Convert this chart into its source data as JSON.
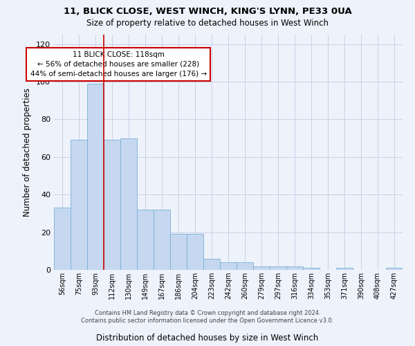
{
  "title": "11, BLICK CLOSE, WEST WINCH, KING'S LYNN, PE33 0UA",
  "subtitle": "Size of property relative to detached houses in West Winch",
  "xlabel": "Distribution of detached houses by size in West Winch",
  "ylabel": "Number of detached properties",
  "bar_color": "#c5d8f0",
  "bar_edge_color": "#7aafd4",
  "categories": [
    "56sqm",
    "75sqm",
    "93sqm",
    "112sqm",
    "130sqm",
    "149sqm",
    "167sqm",
    "186sqm",
    "204sqm",
    "223sqm",
    "242sqm",
    "260sqm",
    "279sqm",
    "297sqm",
    "316sqm",
    "334sqm",
    "353sqm",
    "371sqm",
    "390sqm",
    "408sqm",
    "427sqm"
  ],
  "values": [
    33,
    69,
    99,
    69,
    70,
    32,
    32,
    19,
    19,
    6,
    4,
    4,
    2,
    2,
    2,
    1,
    0,
    1,
    0,
    0,
    1
  ],
  "ylim": [
    0,
    125
  ],
  "yticks": [
    0,
    20,
    40,
    60,
    80,
    100,
    120
  ],
  "annotation_text": "11 BLICK CLOSE: 118sqm\n← 56% of detached houses are smaller (228)\n44% of semi-detached houses are larger (176) →",
  "annotation_box_color": "#ffffff",
  "annotation_box_edge": "#cc0000",
  "vline_color": "#cc0000",
  "vline_x_idx": 3,
  "background_color": "#eef2fa",
  "grid_color": "#c8d0e8",
  "footnote": "Contains HM Land Registry data © Crown copyright and database right 2024.\nContains public sector information licensed under the Open Government Licence v3.0."
}
